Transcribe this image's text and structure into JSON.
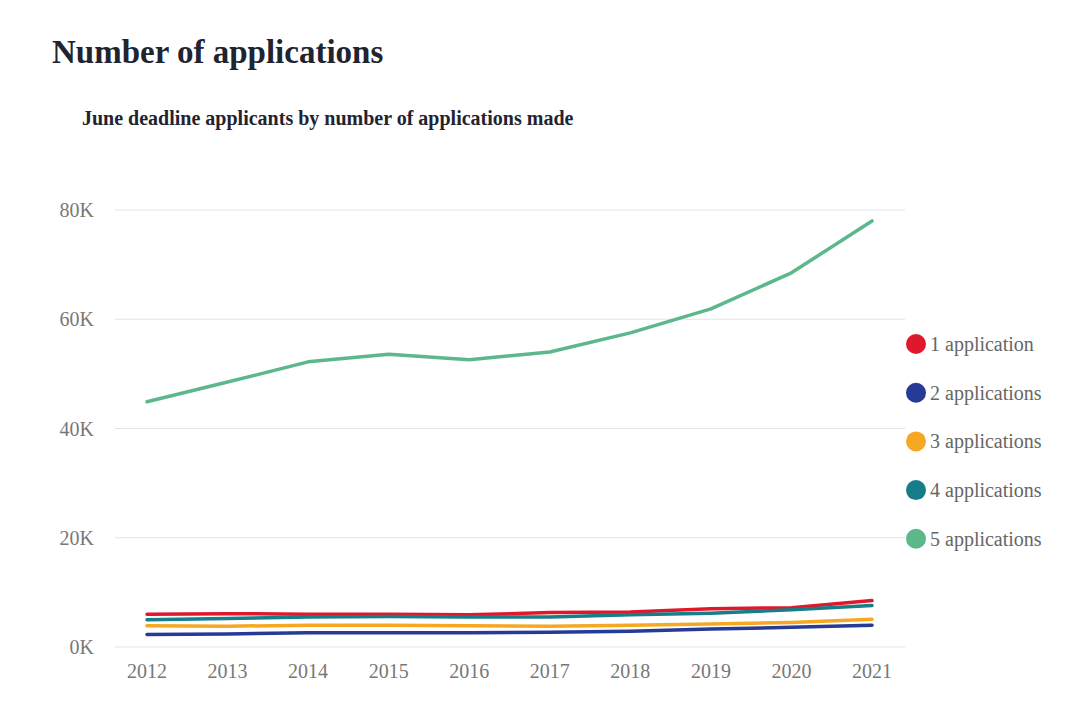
{
  "chart_data": {
    "type": "line",
    "title": "Number of applications",
    "subtitle": "June deadline applicants by number of applications made",
    "categories": [
      "2012",
      "2013",
      "2014",
      "2015",
      "2016",
      "2017",
      "2018",
      "2019",
      "2020",
      "2021"
    ],
    "series": [
      {
        "name": "1 application",
        "color": "#e0182d",
        "values": [
          6.0,
          6.1,
          6.0,
          6.0,
          5.9,
          6.3,
          6.4,
          7.0,
          7.2,
          8.5
        ]
      },
      {
        "name": "2 applications",
        "color": "#263a96",
        "values": [
          2.3,
          2.4,
          2.6,
          2.6,
          2.6,
          2.7,
          2.9,
          3.3,
          3.6,
          4.0
        ]
      },
      {
        "name": "3 applications",
        "color": "#f7a823",
        "values": [
          3.9,
          3.8,
          4.0,
          4.0,
          3.9,
          3.8,
          4.0,
          4.2,
          4.5,
          5.1
        ]
      },
      {
        "name": "4 applications",
        "color": "#177e89",
        "values": [
          5.0,
          5.2,
          5.5,
          5.6,
          5.5,
          5.5,
          5.9,
          6.2,
          6.8,
          7.6
        ]
      },
      {
        "name": "5 applications",
        "color": "#5cb88a",
        "values": [
          44.9,
          48.5,
          52.2,
          53.6,
          52.6,
          54.0,
          57.5,
          61.9,
          68.5,
          78.0
        ]
      }
    ],
    "ylim": [
      0,
      80
    ],
    "yticks": [
      {
        "value": 0,
        "label": "0K"
      },
      {
        "value": 20,
        "label": "20K"
      },
      {
        "value": 40,
        "label": "40K"
      },
      {
        "value": 60,
        "label": "60K"
      },
      {
        "value": 80,
        "label": "80K"
      }
    ],
    "grid": true,
    "legend": "right"
  }
}
